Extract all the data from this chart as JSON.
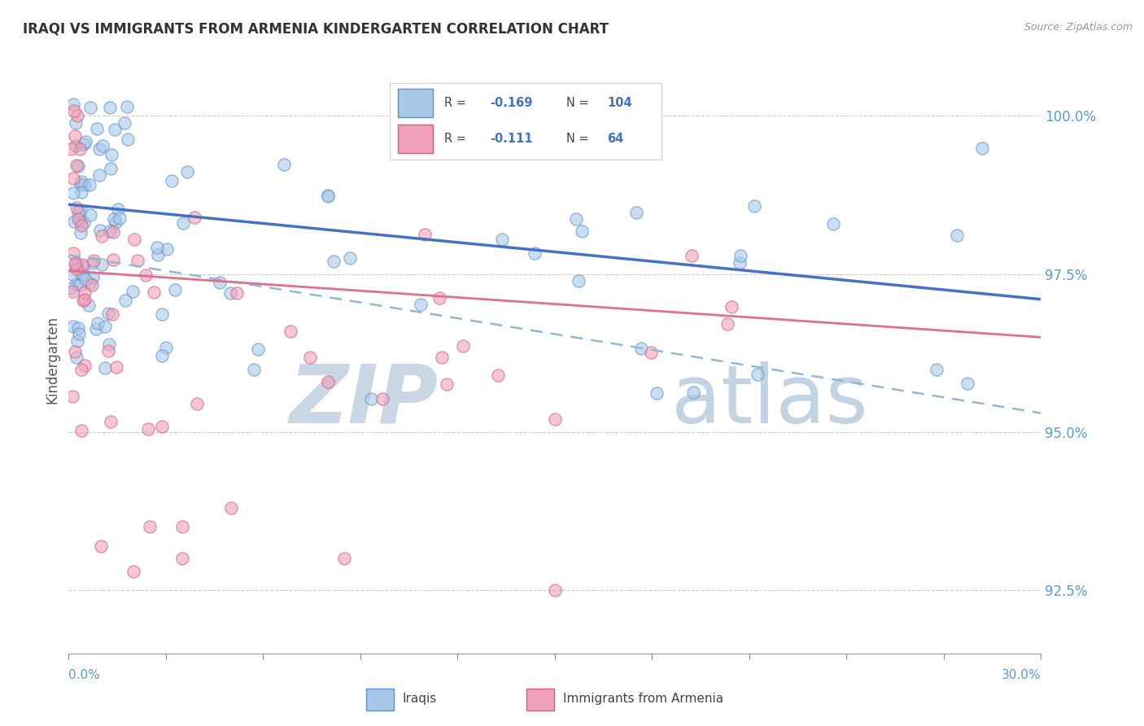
{
  "title": "IRAQI VS IMMIGRANTS FROM ARMENIA KINDERGARTEN CORRELATION CHART",
  "source_text": "Source: ZipAtlas.com",
  "ylabel": "Kindergarten",
  "xmin": 0.0,
  "xmax": 30.0,
  "ymin": 91.5,
  "ymax": 100.8,
  "yticks": [
    92.5,
    95.0,
    97.5,
    100.0
  ],
  "ytick_labels": [
    "92.5%",
    "95.0%",
    "97.5%",
    "100.0%"
  ],
  "color_iraqi": "#a8c8e8",
  "color_armenia": "#f0a0b8",
  "color_iraqi_edge": "#6090c8",
  "color_armenia_edge": "#d06080",
  "color_iraqi_line": "#4472c4",
  "color_armenia_line": "#e07090",
  "color_dashed": "#90b8d8",
  "color_tick": "#5b9bd5",
  "watermark_zip": "ZIP",
  "watermark_atlas": "atlas",
  "watermark_color_zip": "#c0d0e0",
  "watermark_color_atlas": "#b8cce0",
  "background": "#ffffff",
  "legend_box_color": "#cccccc",
  "iraqi_line_y0": 98.6,
  "iraqi_line_y1": 97.1,
  "armenia_line_y0": 97.55,
  "armenia_line_y1": 96.5,
  "dashed_line_y0": 97.8,
  "dashed_line_y1": 95.3
}
